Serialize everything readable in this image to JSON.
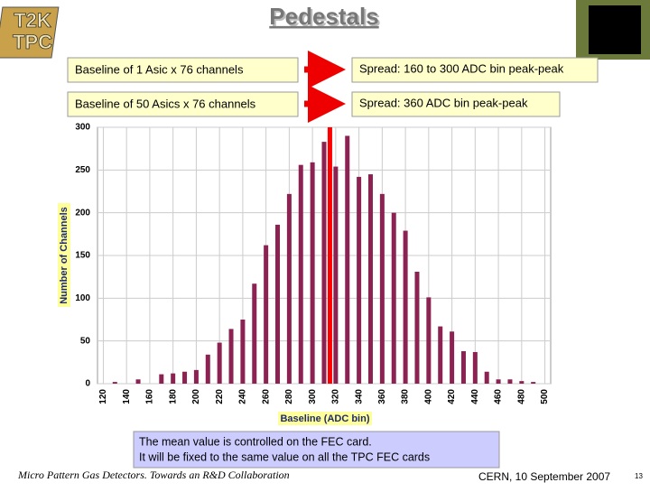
{
  "logo": [
    "T2K",
    "TPC"
  ],
  "title": "Pedestals",
  "rows": [
    {
      "left": "Baseline of 1 Asic x 76 channels",
      "right": "Spread: 160 to 300 ADC bin peak-peak"
    },
    {
      "left": "Baseline of 50 Asics x 76 channels",
      "right": "Spread: 360 ADC bin peak-peak"
    }
  ],
  "chart_data": {
    "type": "bar",
    "x_label": "Baseline (ADC bin)",
    "y_label": "Number of Channels",
    "x": [
      130,
      150,
      170,
      180,
      190,
      200,
      210,
      220,
      230,
      240,
      250,
      260,
      270,
      280,
      290,
      300,
      310,
      320,
      330,
      340,
      350,
      360,
      370,
      380,
      390,
      400,
      410,
      420,
      430,
      440,
      450,
      460,
      470,
      480,
      490
    ],
    "values": [
      2,
      5,
      11,
      12,
      14,
      16,
      34,
      48,
      64,
      75,
      117,
      162,
      186,
      222,
      256,
      259,
      283,
      254,
      290,
      242,
      245,
      222,
      200,
      179,
      131,
      101,
      67,
      61,
      38,
      37,
      14,
      5,
      5,
      3,
      2
    ],
    "color": "#8b2252",
    "marker_x": 315,
    "marker_color": "#ff0000",
    "xlim": [
      115,
      505
    ],
    "xticks": [
      120,
      140,
      160,
      180,
      200,
      220,
      240,
      260,
      280,
      300,
      320,
      340,
      360,
      380,
      400,
      420,
      440,
      460,
      480,
      500
    ],
    "ylim": [
      0,
      300
    ],
    "yticks": [
      0,
      50,
      100,
      150,
      200,
      250,
      300
    ],
    "grid": true
  },
  "note": [
    "The mean value is controlled on the FEC card.",
    "It will be fixed to the same value on all the TPC FEC cards"
  ],
  "footer": {
    "left": "Micro Pattern Gas Detectors. Towards an R&D Collaboration",
    "right": "CERN, 10 September 2007",
    "page": "13"
  }
}
